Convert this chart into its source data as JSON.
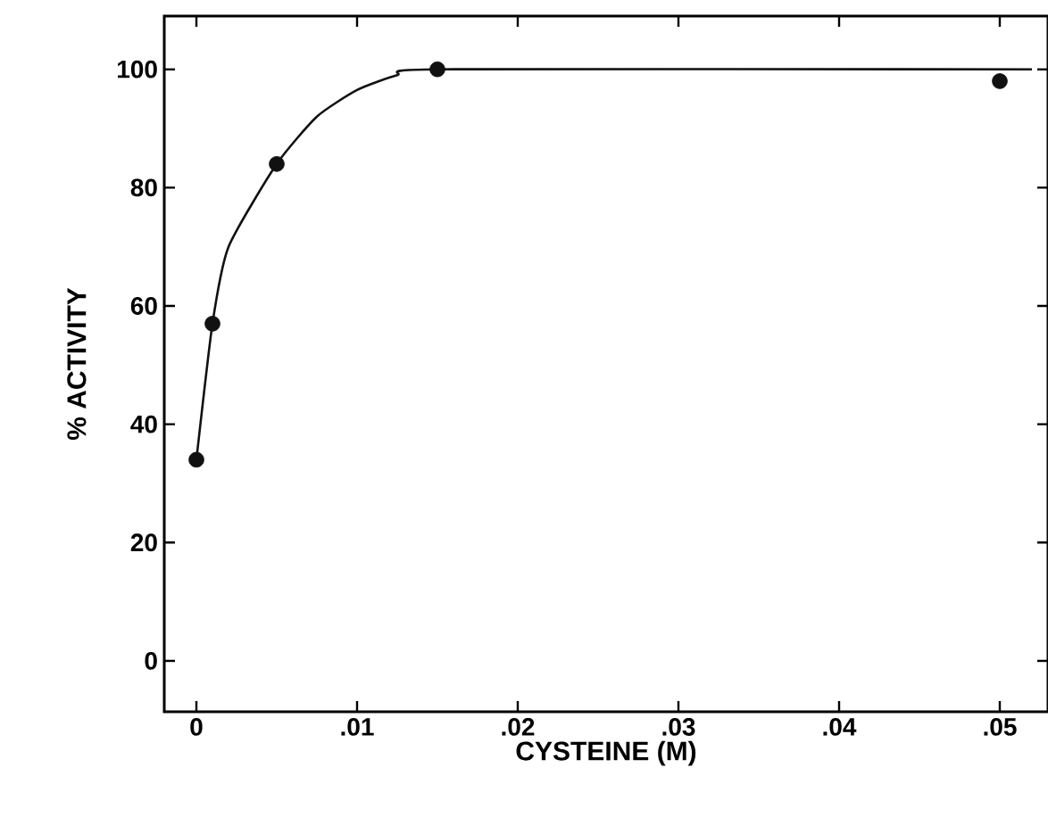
{
  "chart_data": {
    "type": "scatter",
    "xlabel": "CYSTEINE  (M)",
    "ylabel": "% ACTIVITY",
    "xlim": [
      -0.002,
      0.053
    ],
    "ylim": [
      -8.6,
      109
    ],
    "xticks": [
      0,
      {
        "value": 0.01,
        "label": ".01"
      },
      {
        "value": 0.02,
        "label": ".02"
      },
      {
        "value": 0.03,
        "label": ".03"
      },
      {
        "value": 0.04,
        "label": ".04"
      },
      {
        "value": 0.05,
        "label": ".05"
      }
    ],
    "yticks": [
      0,
      20,
      40,
      60,
      80,
      100
    ],
    "grid": false,
    "marker": "circle",
    "series": [
      {
        "color": "#111111",
        "x": [
          0,
          0.001,
          0.005,
          0.015,
          0.05
        ],
        "values": [
          34,
          57,
          84,
          100,
          98
        ]
      },
      {
        "type": "line",
        "color": "#111111",
        "marker": "none",
        "line_style": "solid",
        "x": [
          0,
          0.001,
          0.002,
          0.005,
          0.0075,
          0.01,
          0.0125,
          0.015,
          0.052
        ],
        "values": [
          34,
          57,
          70,
          84,
          92,
          96.5,
          99,
          100,
          100
        ]
      }
    ]
  }
}
